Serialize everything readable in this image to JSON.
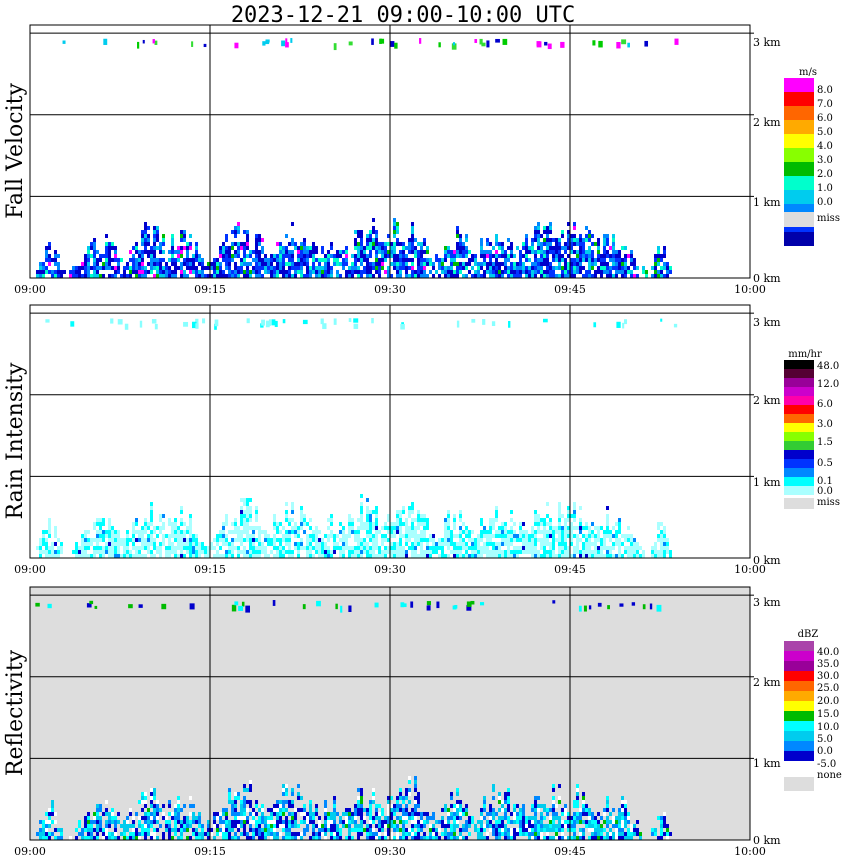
{
  "chart_data": [
    {
      "type": "heatmap",
      "title": "2023-12-21   09:00-10:00 UTC",
      "ylabel": "Fall Velocity",
      "x_ticks": [
        "09:00",
        "09:15",
        "09:30",
        "09:45",
        "10:00"
      ],
      "y_ticks": [
        "0 km",
        "1 km",
        "2 km",
        "3 km"
      ],
      "xlim_minutes": [
        0,
        60
      ],
      "ylim_km": [
        0,
        3.1
      ],
      "background": "#ffffff",
      "legend": {
        "unit": "m/s",
        "labels": [
          "8.0",
          "7.0",
          "6.0",
          "5.0",
          "4.0",
          "3.0",
          "2.0",
          "1.0",
          "0.0"
        ],
        "colors": [
          "#ff00ff",
          "#ff0000",
          "#ff6600",
          "#ffaa00",
          "#ffff00",
          "#88ff00",
          "#00bb00",
          "#00ffcc",
          "#00ccee",
          "#0088ff",
          "#0033ff",
          "#0000aa"
        ],
        "miss_label": "miss",
        "miss_color": "#dddddd"
      },
      "echo_palette": [
        "#0000cc",
        "#0033ff",
        "#0088ff",
        "#00ccee",
        "#00ffcc",
        "#00bb00",
        "#ff00ff"
      ],
      "echo_weights": [
        5,
        4,
        3,
        2,
        1,
        0.6,
        0.4
      ]
    },
    {
      "type": "heatmap",
      "ylabel": "Rain Intensity",
      "x_ticks": [
        "09:00",
        "09:15",
        "09:30",
        "09:45",
        "10:00"
      ],
      "y_ticks": [
        "0 km",
        "1 km",
        "2 km",
        "3 km"
      ],
      "xlim_minutes": [
        0,
        60
      ],
      "ylim_km": [
        0,
        3.1
      ],
      "background": "#ffffff",
      "legend": {
        "unit": "mm/hr",
        "labels": [
          "48.0",
          "12.0",
          "6.0",
          "3.0",
          "1.5",
          "0.5",
          "0.1",
          "0.0"
        ],
        "colors": [
          "#000000",
          "#550033",
          "#990099",
          "#cc00cc",
          "#ff00aa",
          "#ff0000",
          "#ff6600",
          "#ffff00",
          "#88ff00",
          "#33cc33",
          "#0000cc",
          "#0033ff",
          "#0088ff",
          "#00ffff",
          "#aaffff"
        ],
        "miss_label": "miss",
        "miss_color": "#dddddd"
      },
      "echo_palette": [
        "#aaffff",
        "#00ffff",
        "#0088ff",
        "#0000cc"
      ],
      "echo_weights": [
        6,
        3,
        0.5,
        0.15
      ]
    },
    {
      "type": "heatmap",
      "ylabel": "Reflectivity",
      "x_ticks": [
        "09:00",
        "09:15",
        "09:30",
        "09:45",
        "10:00"
      ],
      "y_ticks": [
        "0 km",
        "1 km",
        "2 km",
        "3 km"
      ],
      "xlim_minutes": [
        0,
        60
      ],
      "ylim_km": [
        0,
        3.1
      ],
      "background": "#dddddd",
      "legend": {
        "unit": "dBZ",
        "labels": [
          "40.0",
          "35.0",
          "30.0",
          "25.0",
          "20.0",
          "15.0",
          "10.0",
          "5.0",
          "0.0",
          "-5.0"
        ],
        "colors": [
          "#aa44aa",
          "#cc00cc",
          "#990099",
          "#ff0000",
          "#ff6600",
          "#ffaa00",
          "#ffff00",
          "#00bb00",
          "#00ffff",
          "#00ccee",
          "#0088ff",
          "#0000cc"
        ],
        "miss_label": "none",
        "miss_color": "#dddddd"
      },
      "echo_palette": [
        "#ffffff",
        "#0000cc",
        "#0088ff",
        "#00ccee",
        "#00ffff",
        "#00bb00"
      ],
      "echo_weights": [
        1.5,
        2.5,
        2,
        2.5,
        2,
        0.4
      ]
    }
  ]
}
